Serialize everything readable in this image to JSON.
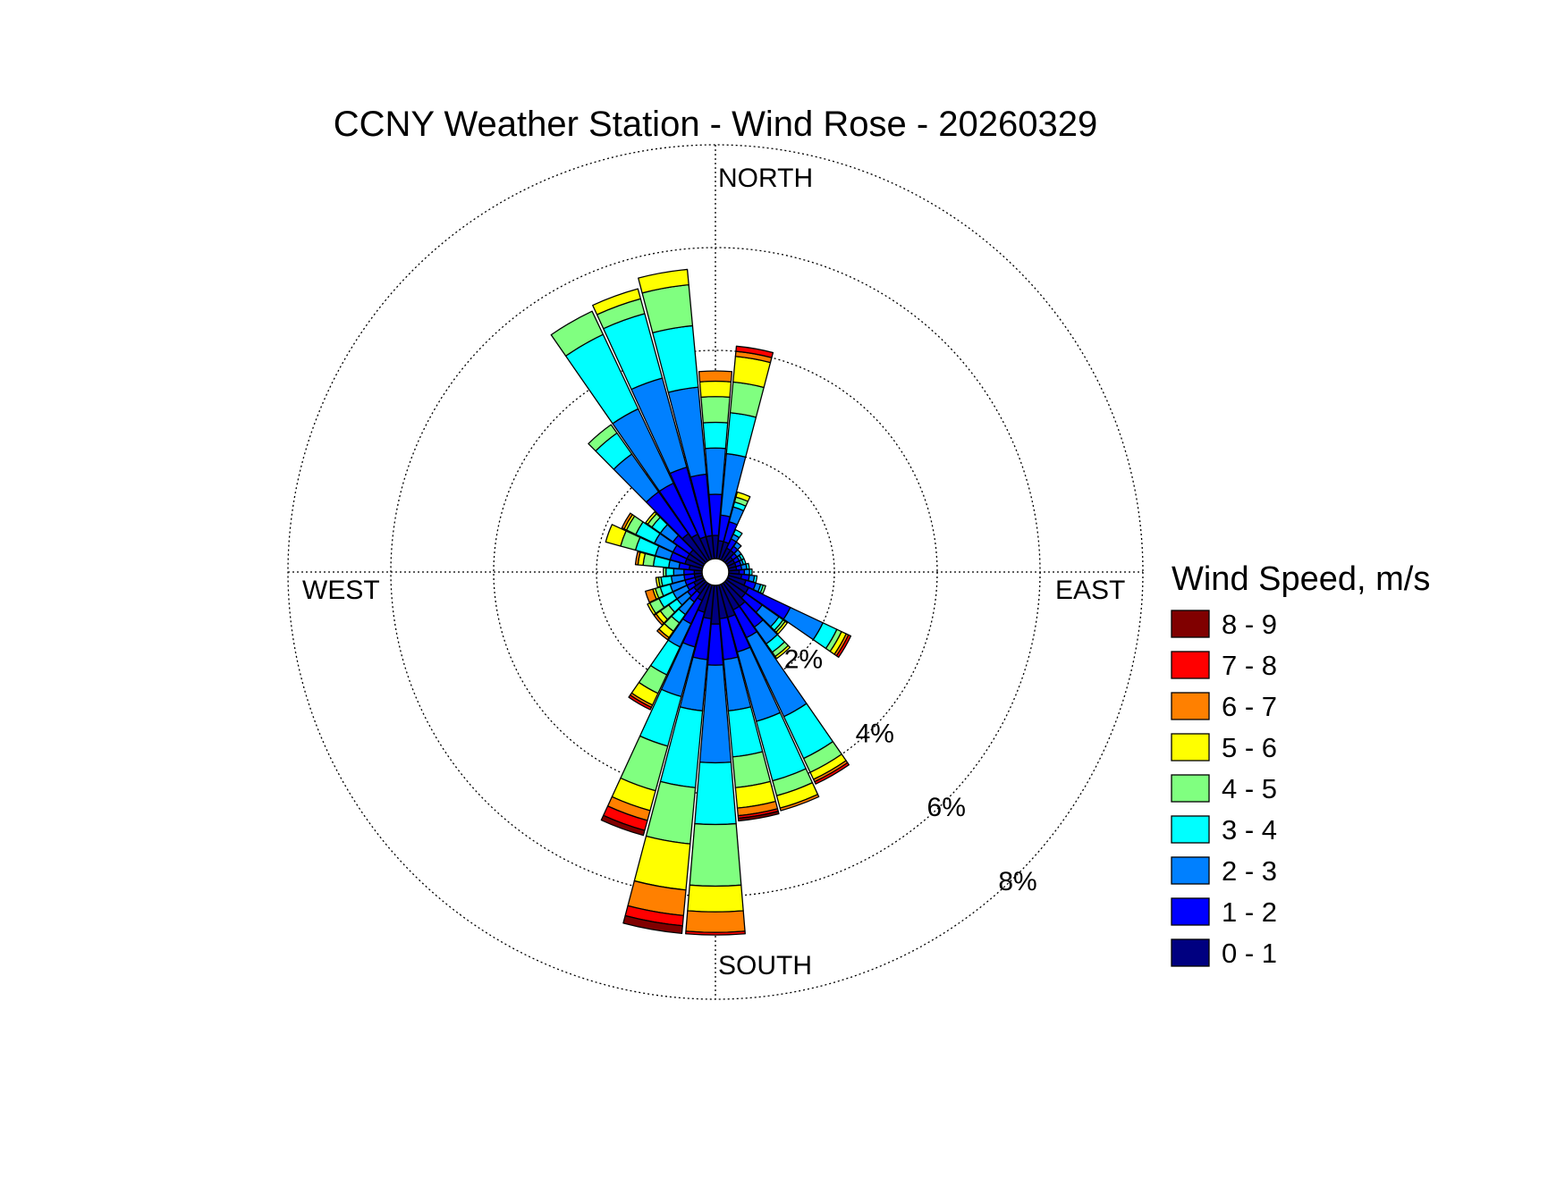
{
  "chart_data": {
    "type": "wind-rose",
    "title": "CCNY Weather Station - Wind Rose - 20260329",
    "directions": {
      "north": "NORTH",
      "south": "SOUTH",
      "east": "EAST",
      "west": "WEST"
    },
    "radial_axis": {
      "ticks": [
        "2%",
        "4%",
        "6%",
        "8%"
      ],
      "max": 8,
      "grid": "dotted"
    },
    "legend": {
      "title": "Wind Speed, m/s",
      "placement": "right",
      "bins": [
        {
          "label": "8 - 9",
          "color": "#800000"
        },
        {
          "label": "7 - 8",
          "color": "#FF0000"
        },
        {
          "label": "6 - 7",
          "color": "#FF8000"
        },
        {
          "label": "5 - 6",
          "color": "#FFFF00"
        },
        {
          "label": "4 - 5",
          "color": "#80FF80"
        },
        {
          "label": "3 - 4",
          "color": "#00FFFF"
        },
        {
          "label": "2 - 3",
          "color": "#0080FF"
        },
        {
          "label": "1 - 2",
          "color": "#0000FF"
        },
        {
          "label": "0 - 1",
          "color": "#000080"
        }
      ]
    },
    "bin_order": [
      "0 - 1",
      "1 - 2",
      "2 - 3",
      "3 - 4",
      "4 - 5",
      "5 - 6",
      "6 - 7",
      "7 - 8",
      "8 - 9"
    ],
    "sectors": [
      {
        "direction": 0,
        "cumulative": [
          0.4,
          1.2,
          2.1,
          2.6,
          3.1,
          3.4,
          3.6,
          3.6,
          3.6
        ]
      },
      {
        "direction": 10,
        "cumulative": [
          0.3,
          0.8,
          2.0,
          2.8,
          3.4,
          3.9,
          4.0,
          4.1,
          4.1
        ]
      },
      {
        "direction": 20,
        "cumulative": [
          0.3,
          0.7,
          1.0,
          1.1,
          1.2,
          1.3,
          1.3,
          1.3,
          1.3
        ]
      },
      {
        "direction": 30,
        "cumulative": [
          0.2,
          0.4,
          0.5,
          0.6,
          0.6,
          0.6,
          0.6,
          0.6,
          0.6
        ]
      },
      {
        "direction": 40,
        "cumulative": [
          0.2,
          0.3,
          0.4,
          0.4,
          0.4,
          0.4,
          0.4,
          0.4,
          0.4
        ]
      },
      {
        "direction": 50,
        "cumulative": [
          0.1,
          0.2,
          0.3,
          0.3,
          0.3,
          0.3,
          0.3,
          0.3,
          0.3
        ]
      },
      {
        "direction": 60,
        "cumulative": [
          0.1,
          0.2,
          0.25,
          0.3,
          0.3,
          0.3,
          0.3,
          0.3,
          0.3
        ]
      },
      {
        "direction": 70,
        "cumulative": [
          0.1,
          0.2,
          0.25,
          0.3,
          0.3,
          0.3,
          0.3,
          0.3,
          0.3
        ]
      },
      {
        "direction": 80,
        "cumulative": [
          0.1,
          0.2,
          0.3,
          0.35,
          0.35,
          0.35,
          0.35,
          0.35,
          0.35
        ]
      },
      {
        "direction": 90,
        "cumulative": [
          0.15,
          0.25,
          0.35,
          0.4,
          0.4,
          0.4,
          0.4,
          0.4,
          0.4
        ]
      },
      {
        "direction": 100,
        "cumulative": [
          0.2,
          0.35,
          0.45,
          0.5,
          0.5,
          0.5,
          0.5,
          0.5,
          0.5
        ]
      },
      {
        "direction": 110,
        "cumulative": [
          0.3,
          0.5,
          0.6,
          0.65,
          0.7,
          0.7,
          0.7,
          0.7,
          0.7
        ]
      },
      {
        "direction": 120,
        "cumulative": [
          0.4,
          1.3,
          2.0,
          2.3,
          2.4,
          2.5,
          2.55,
          2.6,
          2.6
        ]
      },
      {
        "direction": 130,
        "cumulative": [
          0.4,
          0.8,
          1.2,
          1.3,
          1.35,
          1.4,
          1.4,
          1.4,
          1.4
        ]
      },
      {
        "direction": 140,
        "cumulative": [
          0.5,
          1.0,
          1.4,
          1.6,
          1.7,
          1.75,
          1.75,
          1.75,
          1.75
        ]
      },
      {
        "direction": 150,
        "cumulative": [
          0.5,
          1.1,
          2.8,
          3.7,
          4.0,
          4.15,
          4.2,
          4.25,
          4.25
        ]
      },
      {
        "direction": 160,
        "cumulative": [
          0.6,
          1.3,
          2.7,
          3.9,
          4.2,
          4.45,
          4.5,
          4.5,
          4.5
        ]
      },
      {
        "direction": 170,
        "cumulative": [
          0.6,
          1.4,
          2.4,
          3.3,
          3.9,
          4.3,
          4.45,
          4.5,
          4.55
        ]
      },
      {
        "direction": 180,
        "cumulative": [
          0.7,
          1.5,
          3.4,
          4.6,
          5.8,
          6.3,
          6.7,
          6.75,
          6.75
        ]
      },
      {
        "direction": 190,
        "cumulative": [
          0.6,
          1.4,
          2.4,
          3.9,
          5.0,
          5.9,
          6.4,
          6.6,
          6.75
        ]
      },
      {
        "direction": 200,
        "cumulative": [
          0.5,
          1.2,
          2.2,
          3.2,
          4.1,
          4.5,
          4.7,
          4.9,
          5.0
        ]
      },
      {
        "direction": 210,
        "cumulative": [
          0.3,
          0.8,
          1.3,
          1.9,
          2.3,
          2.55,
          2.6,
          2.65,
          2.65
        ]
      },
      {
        "direction": 220,
        "cumulative": [
          0.2,
          0.4,
          0.7,
          0.9,
          1.1,
          1.25,
          1.3,
          1.3,
          1.3
        ]
      },
      {
        "direction": 230,
        "cumulative": [
          0.2,
          0.35,
          0.6,
          0.8,
          1.0,
          1.1,
          1.15,
          1.15,
          1.15
        ]
      },
      {
        "direction": 240,
        "cumulative": [
          0.15,
          0.3,
          0.6,
          0.9,
          1.1,
          1.15,
          1.15,
          1.15,
          1.15
        ]
      },
      {
        "direction": 250,
        "cumulative": [
          0.1,
          0.3,
          0.6,
          0.8,
          0.9,
          0.95,
          1.1,
          1.1,
          1.1
        ]
      },
      {
        "direction": 260,
        "cumulative": [
          0.1,
          0.3,
          0.55,
          0.75,
          0.8,
          0.85,
          0.85,
          0.85,
          0.85
        ]
      },
      {
        "direction": 270,
        "cumulative": [
          0.1,
          0.3,
          0.5,
          0.65,
          0.7,
          0.7,
          0.7,
          0.7,
          0.7
        ]
      },
      {
        "direction": 280,
        "cumulative": [
          0.2,
          0.4,
          0.6,
          0.9,
          1.1,
          1.2,
          1.25,
          1.25,
          1.25
        ]
      },
      {
        "direction": 290,
        "cumulative": [
          0.3,
          0.6,
          0.9,
          1.3,
          1.6,
          1.9,
          1.9,
          1.9,
          1.9
        ]
      },
      {
        "direction": 300,
        "cumulative": [
          0.3,
          0.6,
          1.0,
          1.4,
          1.6,
          1.65,
          1.7,
          1.7,
          1.7
        ]
      },
      {
        "direction": 310,
        "cumulative": [
          0.3,
          0.7,
          1.0,
          1.2,
          1.3,
          1.35,
          1.35,
          1.35,
          1.35
        ]
      },
      {
        "direction": 320,
        "cumulative": [
          0.6,
          1.6,
          2.5,
          3.0,
          3.2,
          3.2,
          3.2,
          3.2,
          3.2
        ]
      },
      {
        "direction": 330,
        "cumulative": [
          0.5,
          1.6,
          3.2,
          4.8,
          5.3,
          5.3,
          5.3,
          5.3,
          5.3
        ]
      },
      {
        "direction": 340,
        "cumulative": [
          0.4,
          1.8,
          3.6,
          4.9,
          5.2,
          5.4,
          5.4,
          5.4,
          5.4
        ]
      },
      {
        "direction": 350,
        "cumulative": [
          0.4,
          1.6,
          3.3,
          4.5,
          5.3,
          5.6,
          5.6,
          5.6,
          5.6
        ]
      }
    ]
  }
}
